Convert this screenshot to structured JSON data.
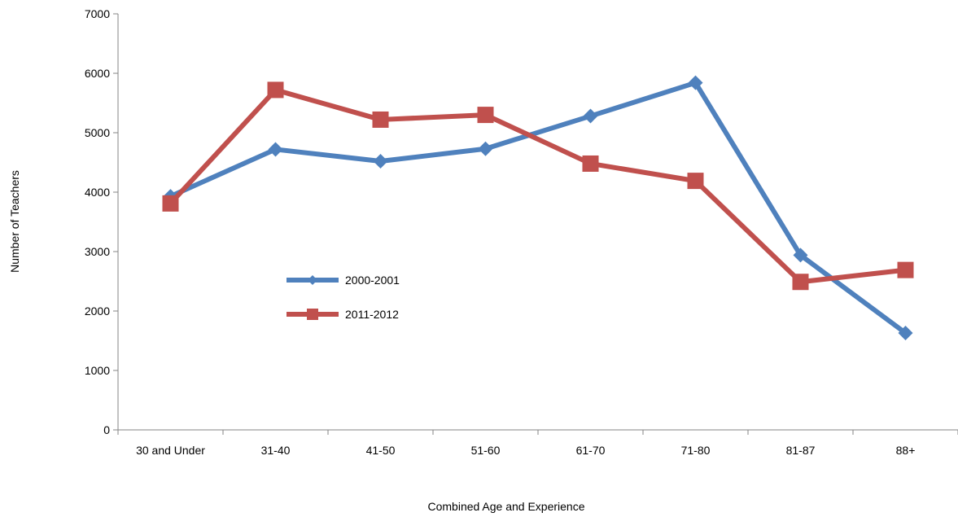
{
  "chart_data": {
    "type": "line",
    "title": "",
    "xlabel": "Combined Age and Experience",
    "ylabel": "Number of Teachers",
    "categories": [
      "30 and Under",
      "31-40",
      "41-50",
      "51-60",
      "61-70",
      "71-80",
      "81-87",
      "88+"
    ],
    "ylim": [
      0,
      7000
    ],
    "yticks": [
      "0",
      "1000",
      "2000",
      "3000",
      "4000",
      "5000",
      "6000",
      "7000"
    ],
    "grid": false,
    "legend_position": "center-left",
    "series": [
      {
        "name": "2000-2001",
        "color": "#4F81BD",
        "marker": "diamond",
        "values": [
          3930,
          4720,
          4520,
          4730,
          5280,
          5840,
          2940,
          1630
        ]
      },
      {
        "name": "2011-2012",
        "color": "#C0504D",
        "marker": "square",
        "values": [
          3810,
          5720,
          5220,
          5300,
          4480,
          4190,
          2490,
          2690
        ]
      }
    ]
  }
}
